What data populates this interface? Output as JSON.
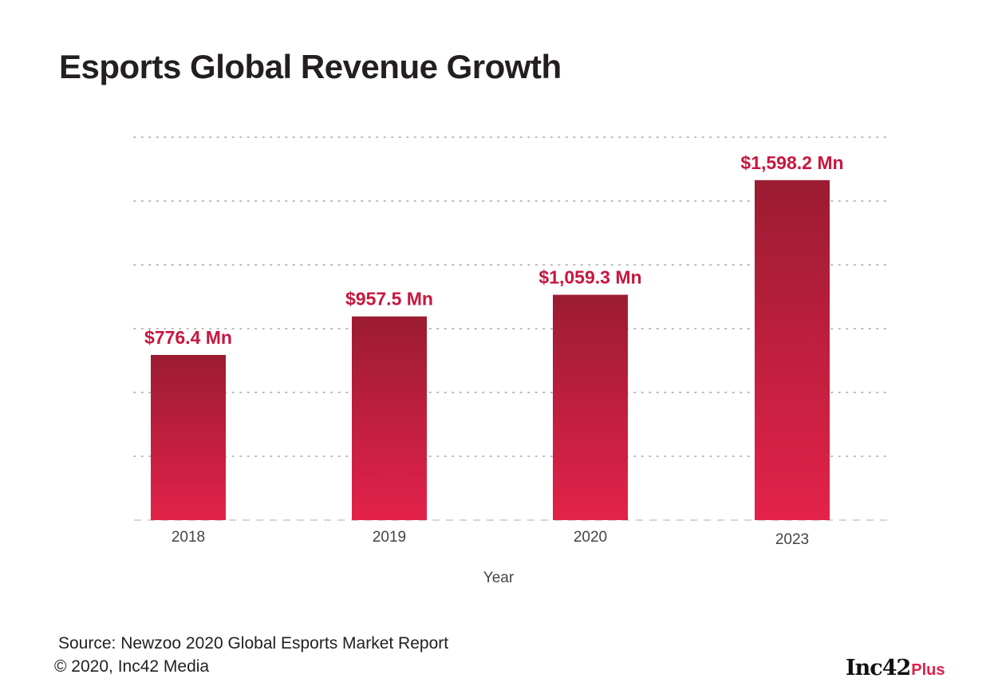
{
  "chart_data": {
    "type": "bar",
    "title": "Esports Global Revenue Growth",
    "categories": [
      "2018",
      "2019",
      "2020",
      "2023"
    ],
    "values": [
      776.4,
      957.5,
      1059.3,
      1598.2
    ],
    "data_labels": [
      "$776.4 Mn",
      "$957.5 Mn",
      "$1,059.3 Mn",
      "$1,598.2 Mn"
    ],
    "xlabel": "Year",
    "ylabel": "",
    "ylim": [
      0,
      1800
    ],
    "grid": true,
    "legend": "none"
  },
  "colors": {
    "bar_top": "#9b1c31",
    "bar_bottom": "#e3224a",
    "label": "#c8163f",
    "text": "#231f20",
    "grid": "#bdbdbd"
  },
  "footer": {
    "source": "Source: Newzoo 2020 Global Esports Market Report",
    "copyright": "© 2020, Inc42 Media"
  },
  "brand": {
    "main": "Inc42",
    "plus": "Plus"
  }
}
